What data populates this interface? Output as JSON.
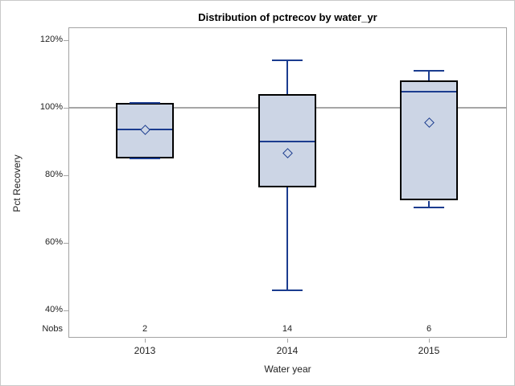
{
  "chart_data": {
    "type": "boxplot",
    "title": "Distribution of pctrecov by water_yr",
    "xlabel": "Water year",
    "ylabel": "Pct Recovery",
    "nobs_label": "Nobs",
    "reference_line": 100,
    "y_ticks": [
      {
        "value": 120,
        "label": "120%"
      },
      {
        "value": 100,
        "label": "100%"
      },
      {
        "value": 80,
        "label": "80%"
      },
      {
        "value": 60,
        "label": "60%"
      },
      {
        "value": 40,
        "label": "40%"
      }
    ],
    "y_range_pct": [
      32,
      124
    ],
    "grid": false,
    "categories": [
      "2013",
      "2014",
      "2015"
    ],
    "boxes": [
      {
        "category": "2013",
        "nobs": "2",
        "min": 85,
        "q1": 85,
        "median": 93.5,
        "mean": 93.5,
        "q3": 101.5,
        "max": 101.5
      },
      {
        "category": "2014",
        "nobs": "14",
        "min": 46,
        "q1": 76.5,
        "median": 90,
        "mean": 86.5,
        "q3": 104,
        "max": 114
      },
      {
        "category": "2015",
        "nobs": "6",
        "min": 70.5,
        "q1": 72.5,
        "median": 104.8,
        "mean": 95.5,
        "q3": 108,
        "max": 111
      }
    ],
    "colors": {
      "box_fill": "#ccd5e5",
      "box_border": "#000000",
      "line": "#1b3c8f",
      "reference": "#a6a6a6",
      "axis": "#a3a3a3",
      "text": "#1a1a1a",
      "outer_border": "#c9c9c9"
    }
  }
}
